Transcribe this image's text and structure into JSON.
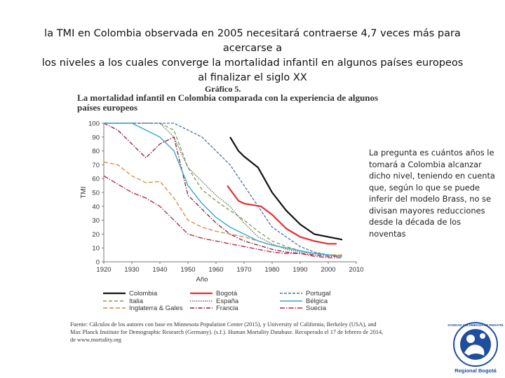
{
  "slide": {
    "title_line1": "la TMI en Colombia observada en 2005 necesitará contraerse 4,7 veces más para acercarse a",
    "title_line2": "los niveles a los cuales converge la mortalidad infantil en algunos países europeos",
    "title_line3": "al finalizar el siglo XX",
    "side_note": "La pregunta es cuántos años le tomará a Colombia alcanzar dicho nivel, teniendo en cuenta que, según lo que se puede inferir del modelo Brass, no se divisan mayores reducciones desde la década de los noventas"
  },
  "figure": {
    "label": "Gráfico 5.",
    "source": "Fuente: Cálculos de los autores con base en Minnesota Population Center (2015), y University of California, Berkeley (USA), and Max Planck Institute for Demographic Research (Germany). (s.f.). Human Mortality Database. Recuperado el 17 de febrero de 2014, de www.mortality.org"
  },
  "logo": {
    "name": "Regional Bogotá",
    "ring_text": "SOCIEDAD COLOMBIANA DE PEDIATRÍA"
  },
  "chart_data": {
    "type": "line",
    "title": "La mortalidad infantil en Colombia comparada con la experiencia de algunos países europeos",
    "xlabel": "Año",
    "ylabel": "TMI",
    "xlim": [
      1920,
      2010
    ],
    "ylim": [
      0,
      100
    ],
    "x_ticks": [
      1920,
      1930,
      1940,
      1950,
      1960,
      1970,
      1980,
      1990,
      2000,
      2010
    ],
    "y_ticks": [
      0,
      10,
      20,
      30,
      40,
      50,
      60,
      70,
      80,
      90,
      100
    ],
    "grid": false,
    "legend_position": "bottom",
    "series": [
      {
        "name": "Colombia",
        "color": "#111111",
        "dash": "solid",
        "width": 2.2,
        "x": [
          1965,
          1968,
          1970,
          1975,
          1980,
          1985,
          1990,
          1995,
          2000,
          2005
        ],
        "y": [
          90,
          80,
          76,
          68,
          50,
          37,
          27,
          20,
          18,
          16
        ]
      },
      {
        "name": "Italia",
        "color": "#7f9a58",
        "dash": "5,3",
        "width": 1.3,
        "x": [
          1920,
          1925,
          1930,
          1935,
          1940,
          1945,
          1950,
          1955,
          1960,
          1965,
          1970,
          1975,
          1980,
          1985,
          1990,
          1995,
          2000,
          2005
        ],
        "y": [
          100,
          100,
          100,
          100,
          100,
          95,
          68,
          52,
          44,
          37,
          30,
          22,
          15,
          11,
          8,
          6,
          5,
          4
        ]
      },
      {
        "name": "Inglaterra & Gales",
        "color": "#d08a3a",
        "dash": "6,3",
        "width": 1.3,
        "x": [
          1920,
          1925,
          1930,
          1935,
          1940,
          1945,
          1950,
          1955,
          1960,
          1965,
          1970,
          1975,
          1980,
          1985,
          1990,
          1995,
          2000,
          2005
        ],
        "y": [
          72,
          70,
          62,
          57,
          58,
          46,
          30,
          25,
          22,
          20,
          18,
          15,
          12,
          10,
          8,
          6,
          5,
          5
        ]
      },
      {
        "name": "Bogotá",
        "color": "#e03030",
        "dash": "solid",
        "width": 2.2,
        "x": [
          1964,
          1968,
          1970,
          1973,
          1976,
          1980,
          1985,
          1990,
          1995,
          2000,
          2003
        ],
        "y": [
          55,
          44,
          42,
          41,
          40,
          34,
          24,
          18,
          15,
          13,
          13
        ]
      },
      {
        "name": "España",
        "color": "#666666",
        "dash": "1.5,1.5",
        "width": 1.3,
        "x": [
          1920,
          1925,
          1930,
          1935,
          1940,
          1945,
          1950,
          1955,
          1960,
          1965,
          1970,
          1975,
          1980,
          1985,
          1990,
          1995,
          2000,
          2005
        ],
        "y": [
          100,
          100,
          100,
          100,
          100,
          90,
          68,
          58,
          48,
          40,
          28,
          18,
          13,
          9,
          7,
          6,
          5,
          4
        ]
      },
      {
        "name": "Francia",
        "color": "#8a1a3a",
        "dash": "6,2,1.5,2",
        "width": 1.3,
        "x": [
          1920,
          1925,
          1930,
          1935,
          1940,
          1945,
          1950,
          1955,
          1960,
          1965,
          1970,
          1975,
          1980,
          1985,
          1990,
          1995,
          2000,
          2005
        ],
        "y": [
          100,
          95,
          85,
          75,
          85,
          90,
          48,
          38,
          28,
          20,
          15,
          12,
          9,
          7,
          6,
          5,
          4,
          4
        ]
      },
      {
        "name": "Portugal",
        "color": "#4a6ea8",
        "dash": "4,2",
        "width": 1.3,
        "x": [
          1920,
          1925,
          1930,
          1935,
          1940,
          1945,
          1950,
          1955,
          1960,
          1965,
          1970,
          1975,
          1980,
          1985,
          1990,
          1995,
          2000,
          2005
        ],
        "y": [
          100,
          100,
          100,
          100,
          100,
          100,
          95,
          90,
          80,
          70,
          55,
          40,
          25,
          18,
          11,
          7,
          5,
          4
        ]
      },
      {
        "name": "Bélgica",
        "color": "#39a7c4",
        "dash": "solid",
        "width": 1.4,
        "x": [
          1920,
          1925,
          1930,
          1935,
          1940,
          1945,
          1950,
          1955,
          1960,
          1965,
          1970,
          1975,
          1980,
          1985,
          1990,
          1995,
          2000,
          2005
        ],
        "y": [
          100,
          100,
          100,
          95,
          90,
          80,
          55,
          42,
          32,
          25,
          20,
          15,
          12,
          10,
          8,
          6,
          5,
          4
        ]
      },
      {
        "name": "Suecia",
        "color": "#b3203a",
        "dash": "7,2,1.5,2",
        "width": 1.3,
        "x": [
          1920,
          1925,
          1930,
          1935,
          1940,
          1945,
          1950,
          1955,
          1960,
          1965,
          1970,
          1975,
          1980,
          1985,
          1990,
          1995,
          2000,
          2005
        ],
        "y": [
          62,
          56,
          50,
          46,
          40,
          30,
          20,
          17,
          15,
          13,
          11,
          9,
          7,
          6,
          6,
          4,
          3,
          3
        ]
      }
    ]
  }
}
